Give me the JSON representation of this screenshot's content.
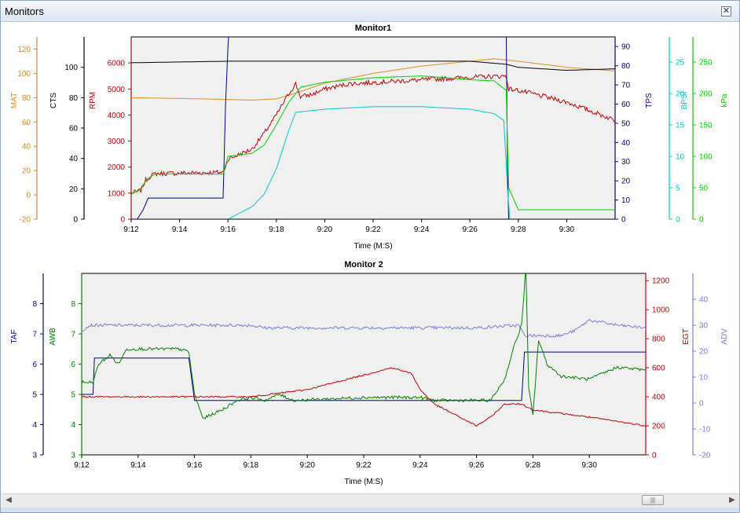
{
  "window": {
    "title": "Monitors",
    "close_icon": "close-icon"
  },
  "scrollbar": {
    "left_icon": "arrow-left-icon",
    "right_icon": "arrow-right-icon",
    "thumb_icon": "grip-icon"
  },
  "chart_data": [
    {
      "type": "line",
      "title": "Monitor1",
      "xlabel": "Time (M:S)",
      "xlim": [
        "9:12",
        "9:32"
      ],
      "xticks": [
        "9:12",
        "9:14",
        "9:16",
        "9:18",
        "9:20",
        "9:22",
        "9:24",
        "9:26",
        "9:28",
        "9:30"
      ],
      "background": "#f0f0f0",
      "axes": [
        {
          "name": "MAT",
          "side": "left",
          "color": "#e08a1e",
          "ylim": [
            -20,
            130
          ],
          "ticks": [
            -20,
            0,
            20,
            40,
            60,
            80,
            100,
            120
          ]
        },
        {
          "name": "CTS",
          "side": "left",
          "color": "#000000",
          "ylim": [
            0,
            120
          ],
          "ticks": [
            0,
            20,
            40,
            60,
            80,
            100
          ]
        },
        {
          "name": "RPM",
          "side": "left",
          "color": "#c00000",
          "ylim": [
            0,
            7000
          ],
          "ticks": [
            0,
            1000,
            2000,
            3000,
            4000,
            5000,
            6000
          ]
        },
        {
          "name": "TPS",
          "side": "right",
          "color": "#00008b",
          "ylim": [
            0,
            95
          ],
          "ticks": [
            0,
            10,
            20,
            30,
            40,
            50,
            60,
            70,
            80,
            90
          ]
        },
        {
          "name": "BPSI",
          "side": "right",
          "color": "#00c8c8",
          "ylim": [
            0,
            29
          ],
          "ticks": [
            0,
            5,
            10,
            15,
            20,
            25
          ]
        },
        {
          "name": "kPa",
          "side": "right",
          "color": "#00d000",
          "ylim": [
            0,
            290
          ],
          "ticks": [
            0,
            50,
            100,
            150,
            200,
            250
          ]
        }
      ],
      "series": [
        {
          "name": "MAT",
          "color": "#e08a1e",
          "noise": 0,
          "points": [
            [
              "9:12",
              80
            ],
            [
              "9:15",
              79
            ],
            [
              "9:17",
              78
            ],
            [
              "9:18",
              79
            ],
            [
              "9:19",
              85
            ],
            [
              "9:20",
              92
            ],
            [
              "9:22",
              100
            ],
            [
              "9:24",
              106
            ],
            [
              "9:26",
              110
            ],
            [
              "9:27",
              112
            ],
            [
              "9:28",
              110
            ],
            [
              "9:30",
              105
            ],
            [
              "9:32",
              102
            ]
          ]
        },
        {
          "name": "CTS",
          "color": "#000000",
          "noise": 0,
          "points": [
            [
              "9:12",
              103
            ],
            [
              "9:16",
              104
            ],
            [
              "9:18",
              104
            ],
            [
              "9:20",
              104
            ],
            [
              "9:22",
              104
            ],
            [
              "9:24",
              104
            ],
            [
              "9:26",
              104
            ],
            [
              "9:27.5",
              102
            ],
            [
              "9:28",
              100
            ],
            [
              "9:30",
              98
            ],
            [
              "9:32",
              99
            ]
          ]
        },
        {
          "name": "RPM",
          "color": "#c00000",
          "noise": 90,
          "points": [
            [
              "9:12",
              1000
            ],
            [
              "9:12.4",
              1100
            ],
            [
              "9:12.6",
              1500
            ],
            [
              "9:12.8",
              1650
            ],
            [
              "9:13",
              1750
            ],
            [
              "9:15.8",
              1800
            ],
            [
              "9:16",
              2300
            ],
            [
              "9:17",
              2700
            ],
            [
              "9:17.5",
              3300
            ],
            [
              "9:18",
              4000
            ],
            [
              "9:18.5",
              4800
            ],
            [
              "9:18.8",
              5200
            ],
            [
              "9:19",
              4700
            ],
            [
              "9:19.5",
              4800
            ],
            [
              "9:20",
              5000
            ],
            [
              "9:21",
              5200
            ],
            [
              "9:22",
              5250
            ],
            [
              "9:23",
              5300
            ],
            [
              "9:24",
              5350
            ],
            [
              "9:25",
              5400
            ],
            [
              "9:26",
              5450
            ],
            [
              "9:27.5",
              5500
            ],
            [
              "9:27.6",
              5000
            ],
            [
              "9:28",
              4950
            ],
            [
              "9:30",
              4500
            ],
            [
              "9:32",
              3800
            ]
          ]
        },
        {
          "name": "TPS",
          "color": "#00008b",
          "noise": 0,
          "points": [
            [
              "9:12",
              0
            ],
            [
              "9:12.25",
              0
            ],
            [
              "9:12.5",
              5
            ],
            [
              "9:12.7",
              11
            ],
            [
              "9:15.8",
              11
            ],
            [
              "9:15.9",
              60
            ],
            [
              "9:16",
              90
            ],
            [
              "9:16.05",
              99
            ],
            [
              "9:27.5",
              99
            ],
            [
              "9:27.55",
              30
            ],
            [
              "9:27.6",
              0
            ]
          ]
        },
        {
          "name": "BPSI",
          "color": "#00c8c8",
          "noise": 0,
          "points": [
            [
              "9:16",
              0
            ],
            [
              "9:17",
              2
            ],
            [
              "9:17.5",
              4
            ],
            [
              "9:18",
              8
            ],
            [
              "9:18.5",
              14
            ],
            [
              "9:18.8",
              17
            ],
            [
              "9:19.5",
              17.3
            ],
            [
              "9:20",
              17.5
            ],
            [
              "9:22",
              17.9
            ],
            [
              "9:24",
              17.9
            ],
            [
              "9:26",
              17.5
            ],
            [
              "9:27",
              16.8
            ],
            [
              "9:27.4",
              15.7
            ],
            [
              "9:27.55",
              5
            ],
            [
              "9:27.65",
              0
            ]
          ]
        },
        {
          "name": "kPa",
          "color": "#00d000",
          "noise": 0,
          "points": [
            [
              "9:12",
              40
            ],
            [
              "9:12.3",
              45
            ],
            [
              "9:12.7",
              65
            ],
            [
              "9:13",
              72
            ],
            [
              "9:15.8",
              72
            ],
            [
              "9:16",
              100
            ],
            [
              "9:17",
              105
            ],
            [
              "9:17.5",
              118
            ],
            [
              "9:18",
              150
            ],
            [
              "9:18.5",
              185
            ],
            [
              "9:19",
              210
            ],
            [
              "9:20",
              218
            ],
            [
              "9:22",
              225
            ],
            [
              "9:24",
              228
            ],
            [
              "9:26",
              222
            ],
            [
              "9:27",
              220
            ],
            [
              "9:27.5",
              205
            ],
            [
              "9:27.6",
              50
            ],
            [
              "9:28",
              15
            ],
            [
              "9:30",
              15
            ],
            [
              "9:32",
              15
            ]
          ]
        }
      ]
    },
    {
      "type": "line",
      "title": "Monitor 2",
      "xlabel": "Time (M:S)",
      "xlim": [
        "9:12",
        "9:32"
      ],
      "xticks": [
        "9:12",
        "9:14",
        "9:16",
        "9:18",
        "9:20",
        "9:22",
        "9:24",
        "9:26",
        "9:28",
        "9:30"
      ],
      "background": "#f0f0f0",
      "axes": [
        {
          "name": "TAF",
          "side": "left",
          "color": "#00008b",
          "ylim": [
            3,
            9
          ],
          "ticks": [
            3,
            4,
            5,
            6,
            7,
            8
          ]
        },
        {
          "name": "AWB",
          "side": "left",
          "color": "#008000",
          "ylim": [
            3,
            9
          ],
          "ticks": [
            3,
            4,
            5,
            6,
            7,
            8
          ]
        },
        {
          "name": "EGT",
          "side": "right",
          "color": "#c00000",
          "ylim": [
            0,
            1250
          ],
          "ticks": [
            0,
            200,
            400,
            600,
            800,
            1000,
            1200
          ]
        },
        {
          "name": "ADV",
          "side": "right",
          "color": "#7b7bd6",
          "ylim": [
            -20,
            50
          ],
          "ticks": [
            -20,
            -10,
            0,
            10,
            20,
            30,
            40
          ]
        }
      ],
      "series": [
        {
          "name": "ADV",
          "color": "#7b7bd6",
          "noise": 0.6,
          "points": [
            [
              "9:12",
              28
            ],
            [
              "9:12.3",
              30
            ],
            [
              "9:18",
              30
            ],
            [
              "9:18.5",
              29
            ],
            [
              "9:20",
              29
            ],
            [
              "9:26",
              29
            ],
            [
              "9:27.5",
              30
            ],
            [
              "9:27.7",
              26
            ],
            [
              "9:29",
              26
            ],
            [
              "9:29.5",
              28
            ],
            [
              "9:30",
              32
            ],
            [
              "9:31",
              30
            ],
            [
              "9:32",
              29
            ]
          ]
        },
        {
          "name": "TAF",
          "color": "#00008b",
          "noise": 0,
          "points": [
            [
              "9:12",
              5
            ],
            [
              "9:12.4",
              5
            ],
            [
              "9:12.45",
              6.2
            ],
            [
              "9:15.8",
              6.2
            ],
            [
              "9:16",
              4.8
            ],
            [
              "9:27.6",
              4.8
            ],
            [
              "9:27.7",
              6.4
            ],
            [
              "9:32",
              6.4
            ]
          ]
        },
        {
          "name": "AWB",
          "color": "#008000",
          "noise": 0.05,
          "points": [
            [
              "9:12",
              5.4
            ],
            [
              "9:12.4",
              5.4
            ],
            [
              "9:12.6",
              6
            ],
            [
              "9:13",
              6.3
            ],
            [
              "9:13.3",
              6
            ],
            [
              "9:13.6",
              6.5
            ],
            [
              "9:14.5",
              6.5
            ],
            [
              "9:15.5",
              6.5
            ],
            [
              "9:15.8",
              6.4
            ],
            [
              "9:16",
              5
            ],
            [
              "9:16.3",
              4.2
            ],
            [
              "9:17",
              4.5
            ],
            [
              "9:17.5",
              4.8
            ],
            [
              "9:18",
              4.9
            ],
            [
              "9:18.5",
              4.8
            ],
            [
              "9:19",
              5
            ],
            [
              "9:19.5",
              4.8
            ],
            [
              "9:22",
              4.9
            ],
            [
              "9:24",
              4.9
            ],
            [
              "9:24.5",
              4.8
            ],
            [
              "9:26.5",
              4.8
            ],
            [
              "9:27",
              5.5
            ],
            [
              "9:27.3",
              6.5
            ],
            [
              "9:27.6",
              7.3
            ],
            [
              "9:27.75",
              9.2
            ],
            [
              "9:27.85",
              5.2
            ],
            [
              "9:28",
              4.3
            ],
            [
              "9:28.2",
              6.8
            ],
            [
              "9:28.5",
              6
            ],
            [
              "9:29",
              5.6
            ],
            [
              "9:30",
              5.5
            ],
            [
              "9:31",
              5.9
            ],
            [
              "9:32",
              5.8
            ]
          ]
        },
        {
          "name": "EGT",
          "color": "#c00000",
          "noise": 5,
          "points": [
            [
              "9:12",
              400
            ],
            [
              "9:16",
              400
            ],
            [
              "9:18",
              400
            ],
            [
              "9:20",
              450
            ],
            [
              "9:22",
              550
            ],
            [
              "9:23",
              600
            ],
            [
              "9:23.7",
              560
            ],
            [
              "9:24",
              450
            ],
            [
              "9:24.5",
              350
            ],
            [
              "9:25",
              300
            ],
            [
              "9:25.5",
              250
            ],
            [
              "9:26",
              200
            ],
            [
              "9:26.5",
              260
            ],
            [
              "9:27",
              350
            ],
            [
              "9:27.6",
              350
            ],
            [
              "9:28",
              310
            ],
            [
              "9:30",
              260
            ],
            [
              "9:32",
              200
            ]
          ]
        }
      ]
    }
  ]
}
